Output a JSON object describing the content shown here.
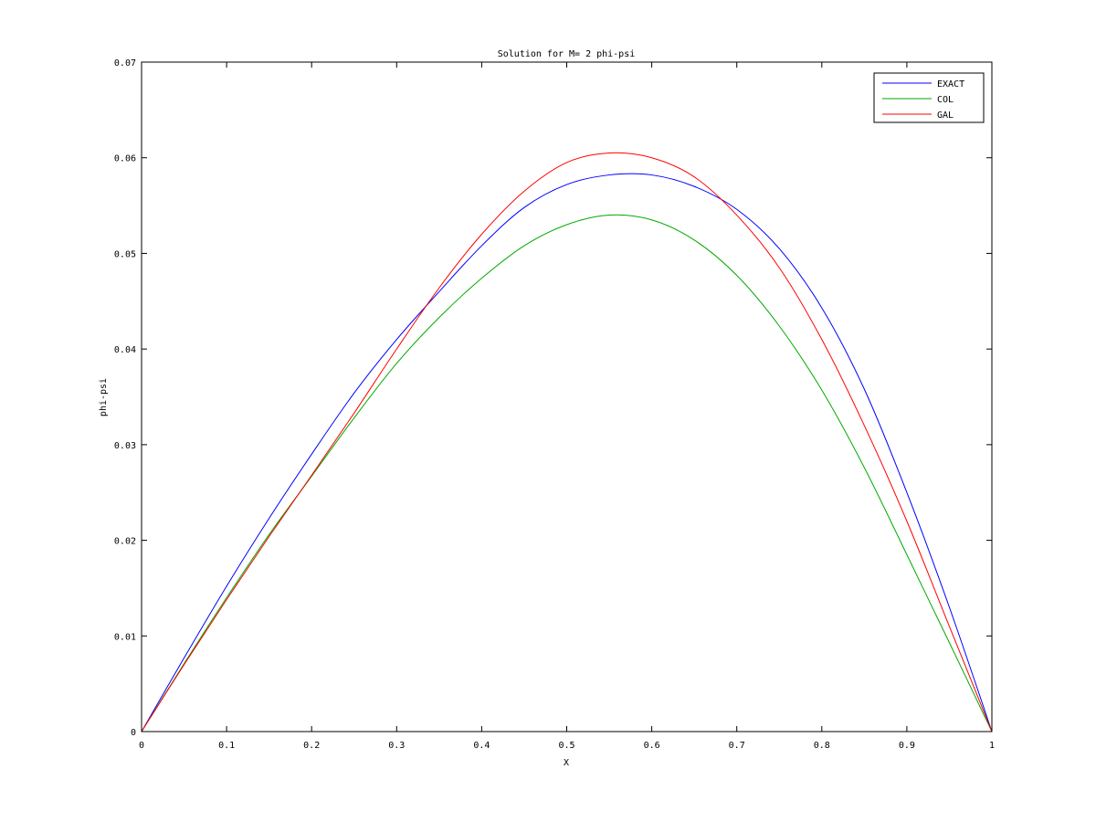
{
  "chart_data": {
    "type": "line",
    "title": "Solution for M= 2 phi-psi",
    "xlabel": "X",
    "ylabel": "phi-psi",
    "xlim": [
      0,
      1
    ],
    "ylim": [
      0,
      0.07
    ],
    "xticks": [
      0,
      0.1,
      0.2,
      0.3,
      0.4,
      0.5,
      0.6,
      0.7,
      0.8,
      0.9,
      1
    ],
    "xtick_labels": [
      "0",
      "0.1",
      "0.2",
      "0.3",
      "0.4",
      "0.5",
      "0.6",
      "0.7",
      "0.8",
      "0.9",
      "1"
    ],
    "yticks": [
      0,
      0.01,
      0.02,
      0.03,
      0.04,
      0.05,
      0.06,
      0.07
    ],
    "ytick_labels": [
      "0",
      "0.01",
      "0.02",
      "0.03",
      "0.04",
      "0.05",
      "0.06",
      "0.07"
    ],
    "grid": false,
    "legend_position": "top-right",
    "x": [
      0,
      0.05,
      0.1,
      0.15,
      0.2,
      0.25,
      0.3,
      0.35,
      0.4,
      0.45,
      0.5,
      0.55,
      0.6,
      0.65,
      0.7,
      0.75,
      0.8,
      0.85,
      0.9,
      0.95,
      1
    ],
    "series": [
      {
        "name": "EXACT",
        "color": "#0000ff",
        "values": [
          0,
          0.0077,
          0.0152,
          0.0223,
          0.029,
          0.0354,
          0.041,
          0.046,
          0.0508,
          0.0548,
          0.0572,
          0.0582,
          0.0582,
          0.057,
          0.0546,
          0.0505,
          0.0443,
          0.0358,
          0.025,
          0.013,
          0
        ]
      },
      {
        "name": "COL",
        "color": "#00aa00",
        "values": [
          0,
          0.0071,
          0.014,
          0.0206,
          0.0267,
          0.0328,
          0.0385,
          0.0433,
          0.0474,
          0.0508,
          0.053,
          0.054,
          0.0535,
          0.0514,
          0.0477,
          0.0424,
          0.0357,
          0.0276,
          0.0185,
          0.0093,
          0
        ]
      },
      {
        "name": "GAL",
        "color": "#ff0000",
        "values": [
          0,
          0.007,
          0.0138,
          0.0204,
          0.0268,
          0.0333,
          0.04,
          0.0464,
          0.052,
          0.0565,
          0.0595,
          0.0605,
          0.06,
          0.058,
          0.054,
          0.0485,
          0.041,
          0.032,
          0.022,
          0.011,
          0
        ]
      }
    ]
  }
}
